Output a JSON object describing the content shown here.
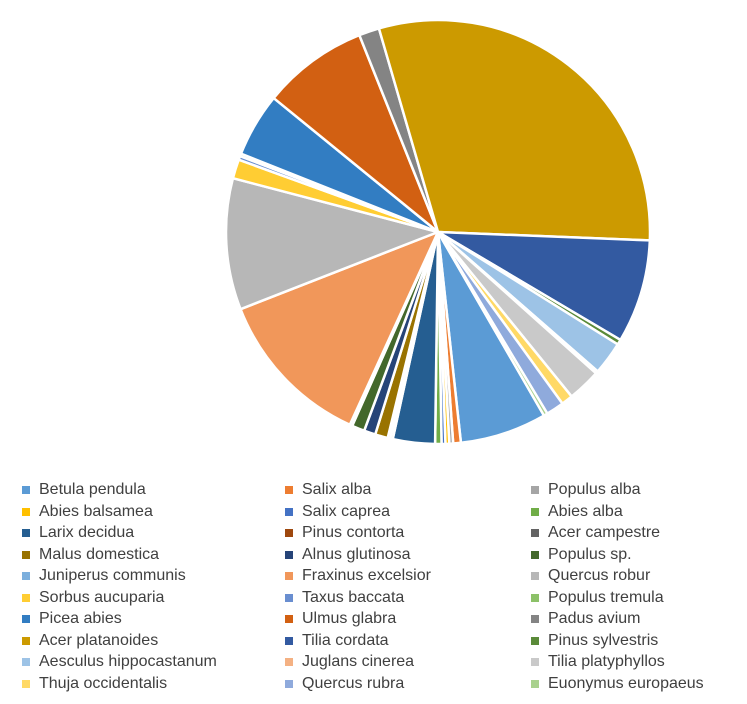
{
  "chart_data": {
    "type": "pie",
    "legend_position": "bottom",
    "series": [
      {
        "name": "Betula pendula",
        "value": 6.8,
        "color": "#5B9BD5"
      },
      {
        "name": "Salix alba",
        "value": 0.6,
        "color": "#ED7D31"
      },
      {
        "name": "Populus alba",
        "value": 0.3,
        "color": "#A5A5A5"
      },
      {
        "name": "Abies balsamea",
        "value": 0.3,
        "color": "#FFC000"
      },
      {
        "name": "Salix caprea",
        "value": 0.3,
        "color": "#4472C4"
      },
      {
        "name": "Abies alba",
        "value": 0.5,
        "color": "#70AD47"
      },
      {
        "name": "Larix decidua",
        "value": 3.3,
        "color": "#255E91"
      },
      {
        "name": "Pinus contorta",
        "value": 0.2,
        "color": "#9E480E"
      },
      {
        "name": "Acer campestre",
        "value": 0.2,
        "color": "#636363"
      },
      {
        "name": "Malus domestica",
        "value": 1.0,
        "color": "#997300"
      },
      {
        "name": "Alnus glutinosa",
        "value": 0.9,
        "color": "#264478"
      },
      {
        "name": "Populus sp.",
        "value": 1.0,
        "color": "#43682B"
      },
      {
        "name": "Juniperus communis",
        "value": 0.2,
        "color": "#7CAFDD"
      },
      {
        "name": "Fraxinus excelsior",
        "value": 12.6,
        "color": "#F1975A"
      },
      {
        "name": "Quercus robur",
        "value": 10.3,
        "color": "#B7B7B7"
      },
      {
        "name": "Sorbus aucuparia",
        "value": 1.5,
        "color": "#FFCD33"
      },
      {
        "name": "Taxus baccata",
        "value": 0.3,
        "color": "#698ED0"
      },
      {
        "name": "Populus tremula",
        "value": 0.2,
        "color": "#8CC168"
      },
      {
        "name": "Picea abies",
        "value": 5.0,
        "color": "#327DC2"
      },
      {
        "name": "Ulmus glabra",
        "value": 8.3,
        "color": "#D26012"
      },
      {
        "name": "Padus avium",
        "value": 1.6,
        "color": "#848484"
      },
      {
        "name": "Acer platanoides",
        "value": 31.0,
        "color": "#CC9A00"
      },
      {
        "name": "Tilia cordata",
        "value": 8.1,
        "color": "#335AA1"
      },
      {
        "name": "Pinus sylvestris",
        "value": 0.4,
        "color": "#5A8A39"
      },
      {
        "name": "Aesculus hippocastanum",
        "value": 2.6,
        "color": "#9DC3E6"
      },
      {
        "name": "Juglans cinerea",
        "value": 0.2,
        "color": "#F4B183"
      },
      {
        "name": "Tilia platyphyllos",
        "value": 2.6,
        "color": "#C9C9C9"
      },
      {
        "name": "Thuja occidentalis",
        "value": 0.9,
        "color": "#FFD966"
      },
      {
        "name": "Quercus rubra",
        "value": 1.4,
        "color": "#8FAADC"
      },
      {
        "name": "Euonymus europaeus",
        "value": 0.3,
        "color": "#A9D18E"
      }
    ]
  }
}
